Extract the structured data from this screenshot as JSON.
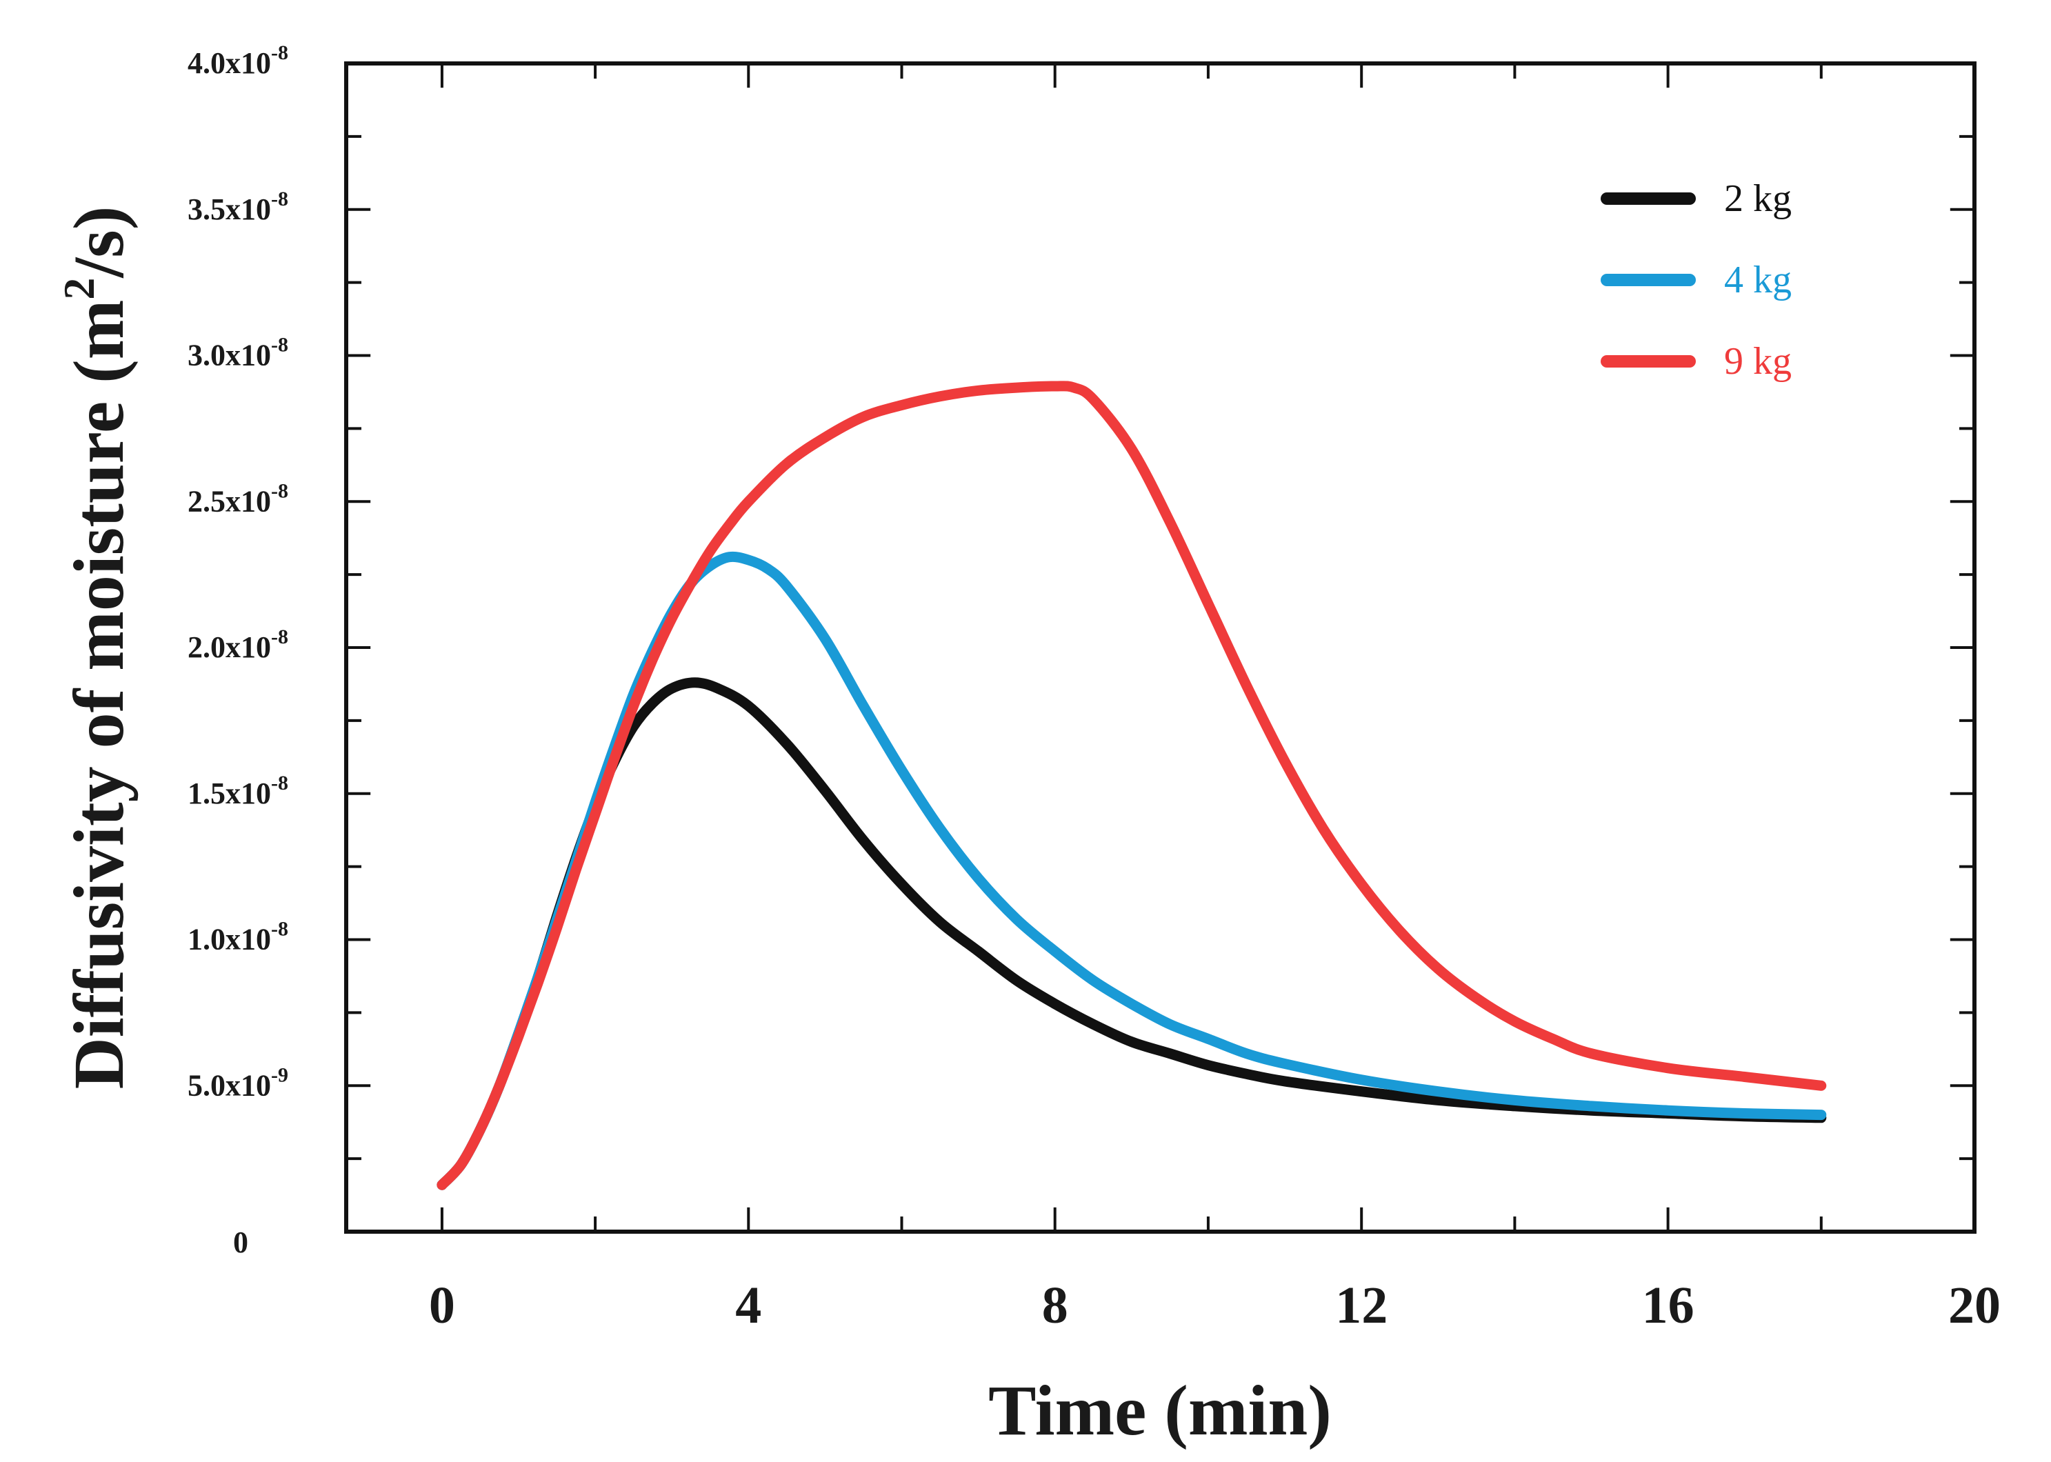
{
  "chart_data": {
    "type": "line",
    "title": "",
    "xlabel": "Time (min)",
    "ylabel_main": "Diffusivity of moisture (m",
    "ylabel_sup": "2",
    "ylabel_end": "/s)",
    "xlim": [
      -1.25,
      20
    ],
    "ylim": [
      0,
      4e-08
    ],
    "x_ticks": [
      {
        "value": 0,
        "label": "0"
      },
      {
        "value": 4,
        "label": "4"
      },
      {
        "value": 8,
        "label": "8"
      },
      {
        "value": 12,
        "label": "12"
      },
      {
        "value": 16,
        "label": "16"
      },
      {
        "value": 20,
        "label": "20"
      }
    ],
    "y_ticks": [
      {
        "value": 0,
        "base": "0",
        "exp": ""
      },
      {
        "value": 5e-09,
        "base": "5.0x10",
        "exp": "-9"
      },
      {
        "value": 1e-08,
        "base": "1.0x10",
        "exp": "-8"
      },
      {
        "value": 1.5e-08,
        "base": "1.5x10",
        "exp": "-8"
      },
      {
        "value": 2e-08,
        "base": "2.0x10",
        "exp": "-8"
      },
      {
        "value": 2.5e-08,
        "base": "2.5x10",
        "exp": "-8"
      },
      {
        "value": 3e-08,
        "base": "3.0x10",
        "exp": "-8"
      },
      {
        "value": 3.5e-08,
        "base": "3.5x10",
        "exp": "-8"
      },
      {
        "value": 4e-08,
        "base": "4.0x10",
        "exp": "-8"
      }
    ],
    "legend_position": "top-right",
    "series": [
      {
        "name": "2 kg",
        "color": "#111111",
        "x": [
          0,
          0.25,
          0.5,
          0.75,
          1,
          1.25,
          1.5,
          1.75,
          2,
          2.25,
          2.5,
          2.75,
          3,
          3.3,
          3.6,
          4,
          4.5,
          5,
          5.5,
          6,
          6.5,
          7,
          7.5,
          8,
          8.5,
          9,
          9.5,
          10,
          10.5,
          11,
          12,
          13,
          14,
          15,
          16,
          17,
          18
        ],
        "y": [
          1.6e-09,
          2.3e-09,
          3.5e-09,
          5e-09,
          6.8e-09,
          8.7e-09,
          1.08e-08,
          1.28e-08,
          1.46e-08,
          1.61e-08,
          1.73e-08,
          1.81e-08,
          1.86e-08,
          1.88e-08,
          1.86e-08,
          1.8e-08,
          1.67e-08,
          1.51e-08,
          1.34e-08,
          1.19e-08,
          1.06e-08,
          9.6e-09,
          8.6e-09,
          7.8e-09,
          7.1e-09,
          6.5e-09,
          6.1e-09,
          5.7e-09,
          5.4e-09,
          5.15e-09,
          4.8e-09,
          4.5e-09,
          4.3e-09,
          4.15e-09,
          4.05e-09,
          3.95e-09,
          3.9e-09
        ]
      },
      {
        "name": "4 kg",
        "color": "#1a9ad6",
        "x": [
          0,
          0.25,
          0.5,
          0.75,
          1,
          1.25,
          1.5,
          1.75,
          2,
          2.25,
          2.5,
          2.75,
          3,
          3.25,
          3.5,
          3.75,
          4,
          4.25,
          4.5,
          5,
          5.5,
          6,
          6.5,
          7,
          7.5,
          8,
          8.5,
          9,
          9.5,
          10,
          10.5,
          11,
          12,
          13,
          14,
          15,
          16,
          17,
          18
        ],
        "y": [
          1.6e-09,
          2.3e-09,
          3.5e-09,
          5e-09,
          6.8e-09,
          8.7e-09,
          1.07e-08,
          1.27e-08,
          1.47e-08,
          1.66e-08,
          1.84e-08,
          1.99e-08,
          2.12e-08,
          2.22e-08,
          2.28e-08,
          2.31e-08,
          2.3e-08,
          2.27e-08,
          2.21e-08,
          2.03e-08,
          1.8e-08,
          1.58e-08,
          1.38e-08,
          1.21e-08,
          1.07e-08,
          9.6e-09,
          8.6e-09,
          7.8e-09,
          7.1e-09,
          6.6e-09,
          6.1e-09,
          5.75e-09,
          5.2e-09,
          4.8e-09,
          4.5e-09,
          4.3e-09,
          4.15e-09,
          4.05e-09,
          4e-09
        ]
      },
      {
        "name": "9 kg",
        "color": "#ef3b3b",
        "x": [
          0,
          0.25,
          0.5,
          0.75,
          1,
          1.25,
          1.5,
          1.75,
          2,
          2.25,
          2.5,
          2.75,
          3,
          3.25,
          3.5,
          3.75,
          4,
          4.5,
          5,
          5.5,
          6,
          6.5,
          7,
          7.5,
          8,
          8.25,
          8.5,
          9,
          9.5,
          10,
          10.5,
          11,
          11.5,
          12,
          12.5,
          13,
          13.5,
          14,
          14.5,
          15,
          16,
          17,
          18
        ],
        "y": [
          1.6e-09,
          2.3e-09,
          3.5e-09,
          5e-09,
          6.7e-09,
          8.5e-09,
          1.04e-08,
          1.24e-08,
          1.43e-08,
          1.62e-08,
          1.8e-08,
          1.96e-08,
          2.1e-08,
          2.22e-08,
          2.33e-08,
          2.42e-08,
          2.5e-08,
          2.63e-08,
          2.72e-08,
          2.79e-08,
          2.83e-08,
          2.86e-08,
          2.88e-08,
          2.89e-08,
          2.895e-08,
          2.89e-08,
          2.85e-08,
          2.68e-08,
          2.43e-08,
          2.15e-08,
          1.87e-08,
          1.61e-08,
          1.38e-08,
          1.19e-08,
          1.03e-08,
          9e-09,
          8e-09,
          7.2e-09,
          6.6e-09,
          6.1e-09,
          5.6e-09,
          5.3e-09,
          5e-09
        ]
      }
    ]
  }
}
